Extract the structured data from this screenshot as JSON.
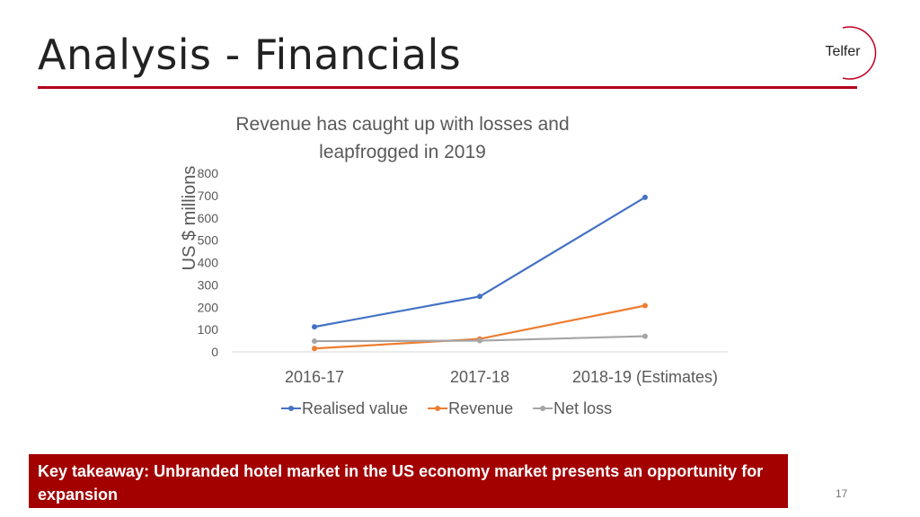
{
  "slide": {
    "title": "Analysis - Financials",
    "logo_text": "Telfer",
    "takeaway": "Key takeaway: Unbranded hotel market in the US economy market presents an opportunity for expansion",
    "page_number": "17"
  },
  "colors": {
    "accent": "#b3001b",
    "takeaway_bg": "#a30000",
    "realised": "#4472c4",
    "revenue": "#ed7d31",
    "netloss": "#a5a5a5"
  },
  "chart_data": {
    "type": "line",
    "title_lines": [
      "Revenue has caught up with losses and",
      "leapfrogged in 2019"
    ],
    "ylabel": "US $ millions",
    "xlabel": "",
    "categories": [
      "2016-17",
      "2017-18",
      "2018-19 (Estimates)"
    ],
    "yticks": [
      0,
      100,
      200,
      300,
      400,
      500,
      600,
      700,
      800
    ],
    "ylim": [
      0,
      800
    ],
    "grid": false,
    "legend_position": "bottom",
    "series": [
      {
        "name": "Realised value",
        "values": [
          112,
          248,
          692
        ],
        "color": "#4472c4"
      },
      {
        "name": "Revenue",
        "values": [
          15,
          58,
          207
        ],
        "color": "#ed7d31"
      },
      {
        "name": "Net loss",
        "values": [
          48,
          50,
          70
        ],
        "color": "#a5a5a5"
      }
    ]
  }
}
